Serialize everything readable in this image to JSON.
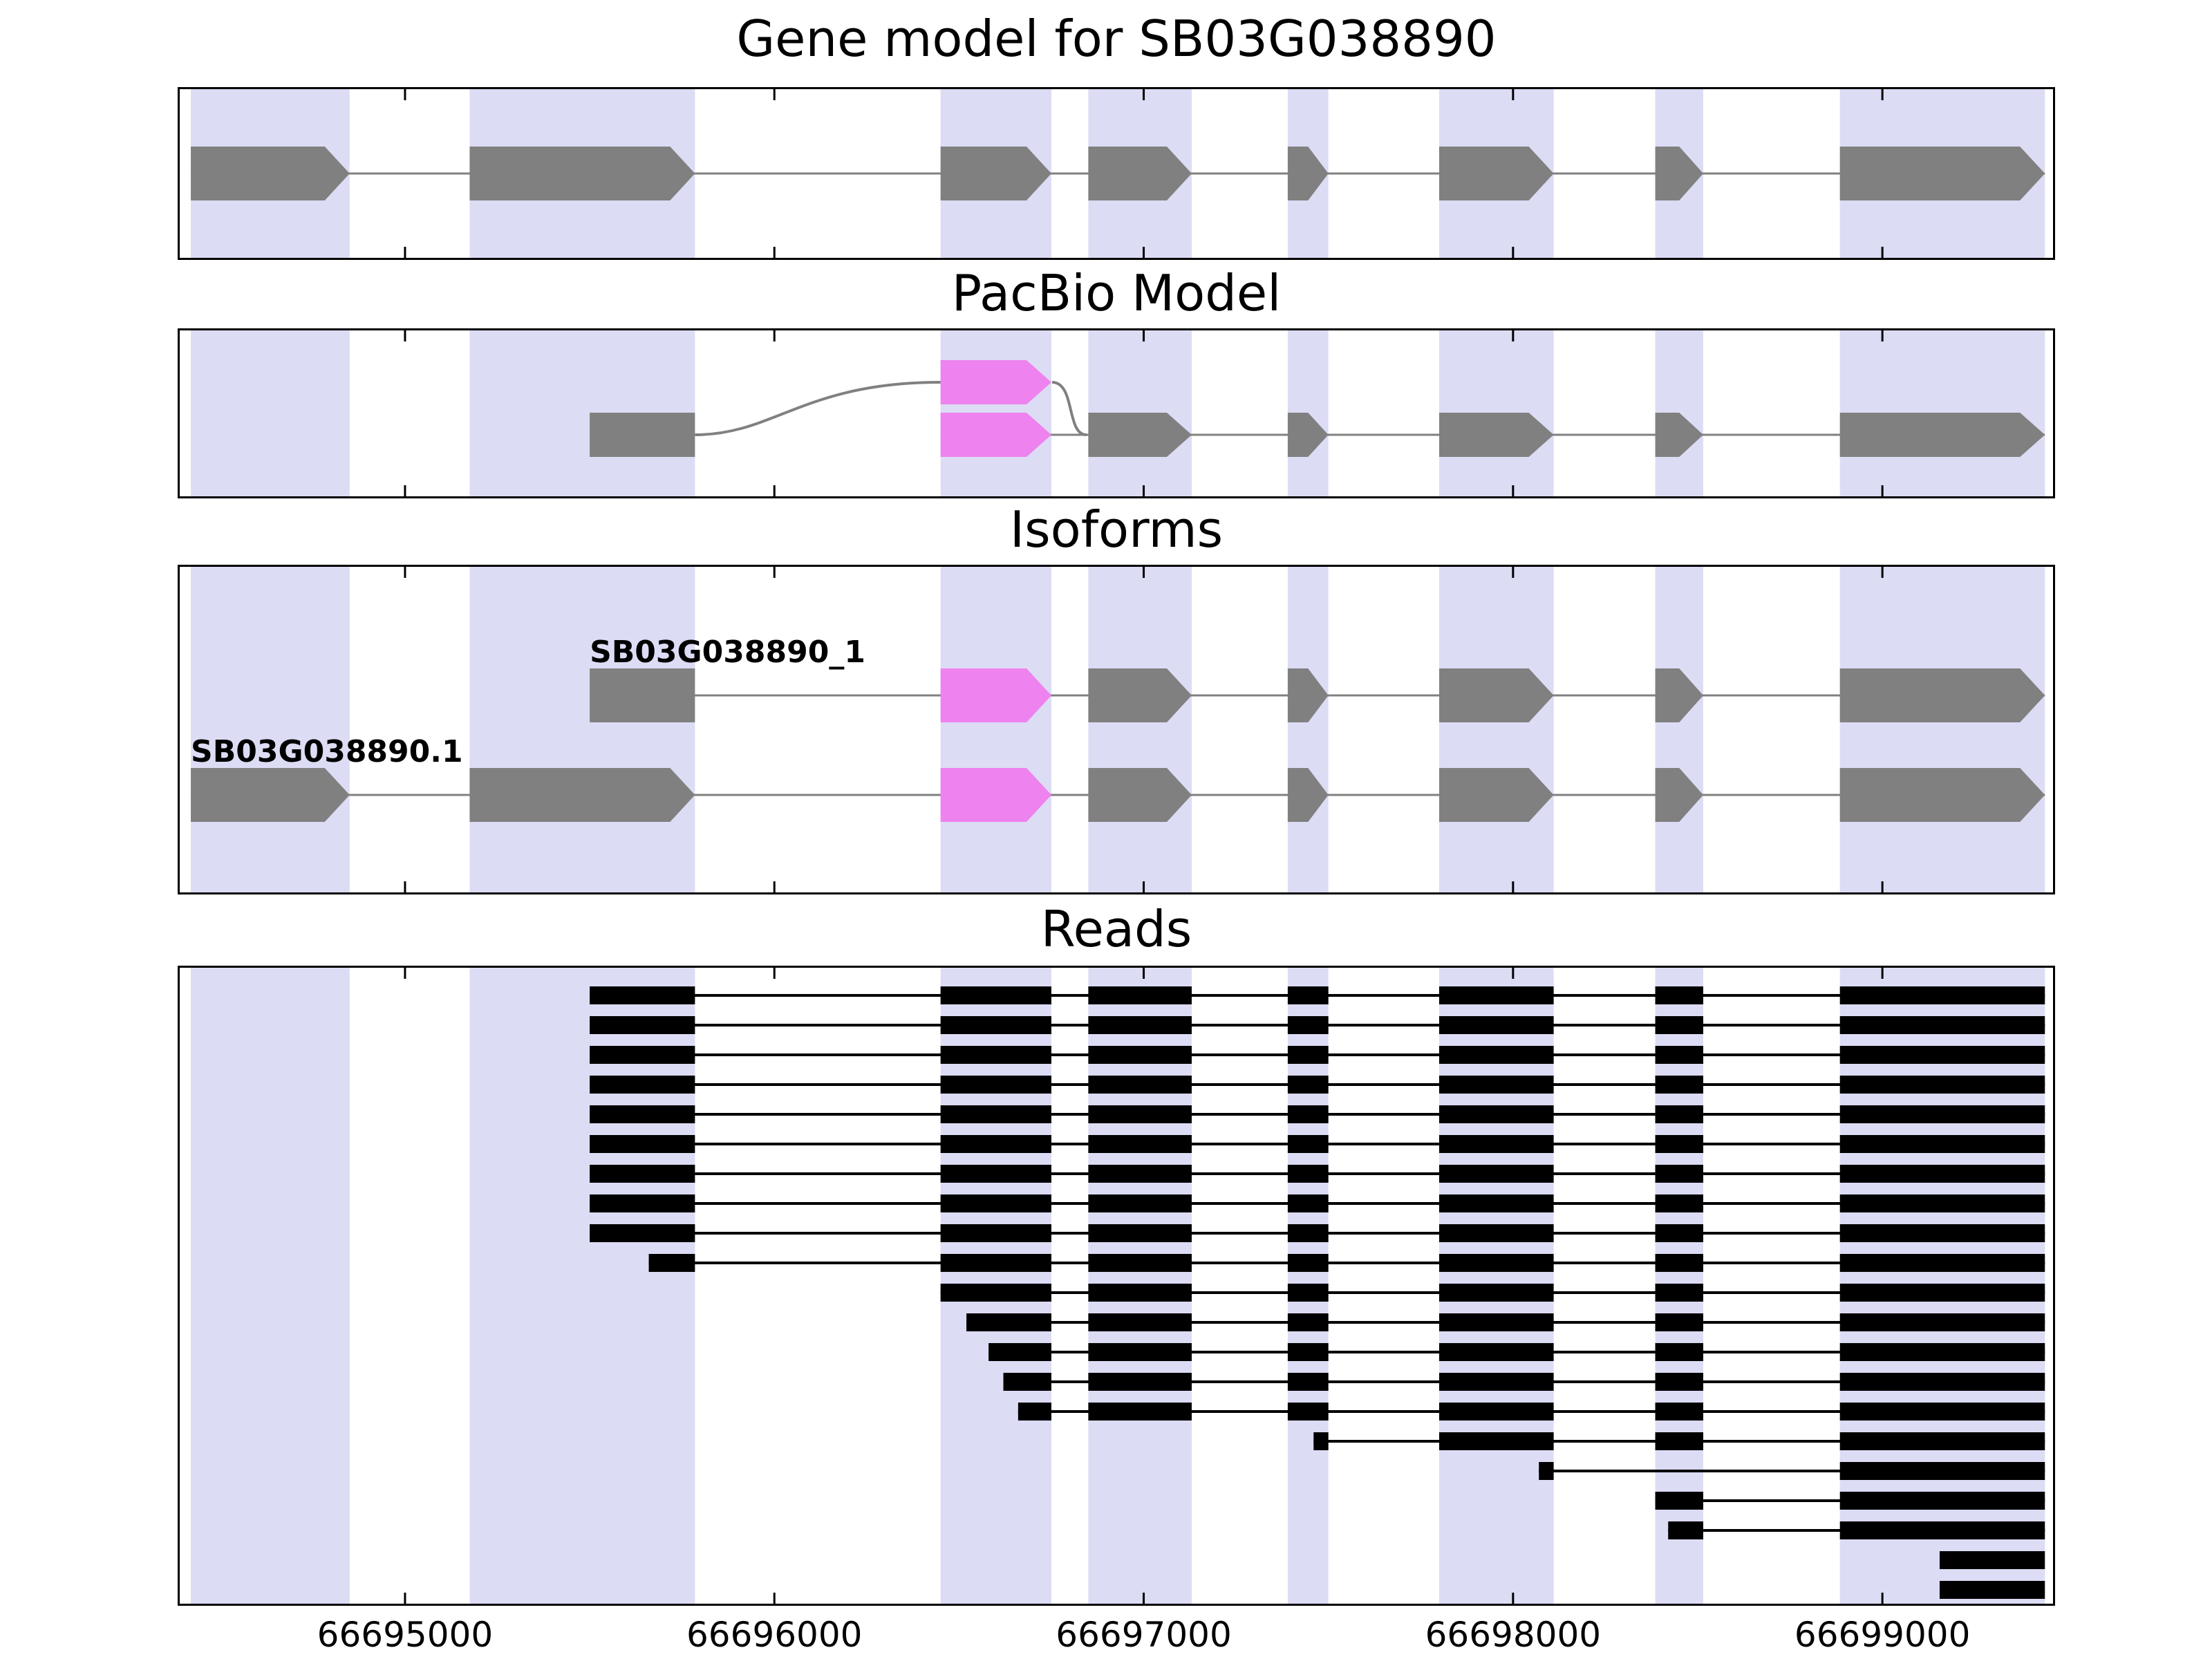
{
  "figure": {
    "background": "#ffffff",
    "colors": {
      "band": "#dcdcf5",
      "exon": "#808080",
      "highlight_exon": "#ee82ee",
      "read": "#000000",
      "connector": "#808080",
      "axis": "#000000"
    }
  },
  "titles": {
    "gene": "Gene model for SB03G038890",
    "pacbio": "PacBio Model",
    "isoforms": "Isoforms",
    "reads": "Reads"
  },
  "chart_data": {
    "type": "gene-model-browser",
    "axis": {
      "xmin": 66694390,
      "xmax": 66699462,
      "ticks": [
        66695000,
        66696000,
        66697000,
        66698000,
        66699000
      ],
      "tick_labels": [
        "66695000",
        "66696000",
        "66697000",
        "66698000",
        "66699000"
      ]
    },
    "highlight_bands": [
      [
        66694420,
        66694850
      ],
      [
        66695175,
        66695785
      ],
      [
        66696450,
        66696750
      ],
      [
        66696850,
        66697130
      ],
      [
        66697390,
        66697500
      ],
      [
        66697800,
        66698110
      ],
      [
        66698385,
        66698515
      ],
      [
        66698885,
        66699440
      ]
    ],
    "gene_model": {
      "strand": "+",
      "exons": [
        [
          66694420,
          66694850
        ],
        [
          66695175,
          66695785
        ],
        [
          66696450,
          66696750
        ],
        [
          66696850,
          66697130
        ],
        [
          66697390,
          66697500
        ],
        [
          66697800,
          66698110
        ],
        [
          66698385,
          66698515
        ],
        [
          66698885,
          66699440
        ]
      ]
    },
    "pacbio_model": {
      "curve_from": 66695785,
      "curve_to": 66696450,
      "baseline": [
        66696450,
        66699440
      ],
      "exons": [
        {
          "start": 66695500,
          "end": 66695785,
          "color": "gray",
          "shape": "rect",
          "level": "base"
        },
        {
          "start": 66696450,
          "end": 66696750,
          "color": "magenta",
          "shape": "arrow",
          "level": "raised"
        },
        {
          "start": 66696450,
          "end": 66696750,
          "color": "magenta",
          "shape": "arrow",
          "level": "base"
        },
        {
          "start": 66696850,
          "end": 66697130,
          "color": "gray",
          "shape": "arrow",
          "level": "base"
        },
        {
          "start": 66697390,
          "end": 66697500,
          "color": "gray",
          "shape": "arrow",
          "level": "base"
        },
        {
          "start": 66697800,
          "end": 66698110,
          "color": "gray",
          "shape": "arrow",
          "level": "base"
        },
        {
          "start": 66698385,
          "end": 66698515,
          "color": "gray",
          "shape": "arrow",
          "level": "base"
        },
        {
          "start": 66698885,
          "end": 66699440,
          "color": "gray",
          "shape": "arrow",
          "level": "base"
        }
      ]
    },
    "isoforms": [
      {
        "label": "SB03G038890_1",
        "exons": [
          {
            "start": 66695500,
            "end": 66695785,
            "color": "gray",
            "shape": "rect"
          },
          {
            "start": 66696450,
            "end": 66696750,
            "color": "magenta",
            "shape": "arrow"
          },
          {
            "start": 66696850,
            "end": 66697130,
            "color": "gray",
            "shape": "arrow"
          },
          {
            "start": 66697390,
            "end": 66697500,
            "color": "gray",
            "shape": "arrow"
          },
          {
            "start": 66697800,
            "end": 66698110,
            "color": "gray",
            "shape": "arrow"
          },
          {
            "start": 66698385,
            "end": 66698515,
            "color": "gray",
            "shape": "arrow"
          },
          {
            "start": 66698885,
            "end": 66699440,
            "color": "gray",
            "shape": "arrow"
          }
        ]
      },
      {
        "label": "SB03G038890.1",
        "exons": [
          {
            "start": 66694420,
            "end": 66694850,
            "color": "gray",
            "shape": "arrow"
          },
          {
            "start": 66695175,
            "end": 66695785,
            "color": "gray",
            "shape": "arrow"
          },
          {
            "start": 66696450,
            "end": 66696750,
            "color": "magenta",
            "shape": "arrow"
          },
          {
            "start": 66696850,
            "end": 66697130,
            "color": "gray",
            "shape": "arrow"
          },
          {
            "start": 66697390,
            "end": 66697500,
            "color": "gray",
            "shape": "arrow"
          },
          {
            "start": 66697800,
            "end": 66698110,
            "color": "gray",
            "shape": "arrow"
          },
          {
            "start": 66698385,
            "end": 66698515,
            "color": "gray",
            "shape": "arrow"
          },
          {
            "start": 66698885,
            "end": 66699440,
            "color": "gray",
            "shape": "arrow"
          }
        ]
      }
    ],
    "reads": [
      [
        [
          66695500,
          66695785
        ],
        [
          66696450,
          66696750
        ],
        [
          66696850,
          66697130
        ],
        [
          66697390,
          66697500
        ],
        [
          66697800,
          66698110
        ],
        [
          66698385,
          66698515
        ],
        [
          66698885,
          66699440
        ]
      ],
      [
        [
          66695500,
          66695785
        ],
        [
          66696450,
          66696750
        ],
        [
          66696850,
          66697130
        ],
        [
          66697390,
          66697500
        ],
        [
          66697800,
          66698110
        ],
        [
          66698385,
          66698515
        ],
        [
          66698885,
          66699440
        ]
      ],
      [
        [
          66695500,
          66695785
        ],
        [
          66696450,
          66696750
        ],
        [
          66696850,
          66697130
        ],
        [
          66697390,
          66697500
        ],
        [
          66697800,
          66698110
        ],
        [
          66698385,
          66698515
        ],
        [
          66698885,
          66699440
        ]
      ],
      [
        [
          66695500,
          66695785
        ],
        [
          66696450,
          66696750
        ],
        [
          66696850,
          66697130
        ],
        [
          66697390,
          66697500
        ],
        [
          66697800,
          66698110
        ],
        [
          66698385,
          66698515
        ],
        [
          66698885,
          66699440
        ]
      ],
      [
        [
          66695500,
          66695785
        ],
        [
          66696450,
          66696750
        ],
        [
          66696850,
          66697130
        ],
        [
          66697390,
          66697500
        ],
        [
          66697800,
          66698110
        ],
        [
          66698385,
          66698515
        ],
        [
          66698885,
          66699440
        ]
      ],
      [
        [
          66695500,
          66695785
        ],
        [
          66696450,
          66696750
        ],
        [
          66696850,
          66697130
        ],
        [
          66697390,
          66697500
        ],
        [
          66697800,
          66698110
        ],
        [
          66698385,
          66698515
        ],
        [
          66698885,
          66699440
        ]
      ],
      [
        [
          66695500,
          66695785
        ],
        [
          66696450,
          66696750
        ],
        [
          66696850,
          66697130
        ],
        [
          66697390,
          66697500
        ],
        [
          66697800,
          66698110
        ],
        [
          66698385,
          66698515
        ],
        [
          66698885,
          66699440
        ]
      ],
      [
        [
          66695500,
          66695785
        ],
        [
          66696450,
          66696750
        ],
        [
          66696850,
          66697130
        ],
        [
          66697390,
          66697500
        ],
        [
          66697800,
          66698110
        ],
        [
          66698385,
          66698515
        ],
        [
          66698885,
          66699440
        ]
      ],
      [
        [
          66695500,
          66695785
        ],
        [
          66696450,
          66696750
        ],
        [
          66696850,
          66697130
        ],
        [
          66697390,
          66697500
        ],
        [
          66697800,
          66698110
        ],
        [
          66698385,
          66698515
        ],
        [
          66698885,
          66699440
        ]
      ],
      [
        [
          66695660,
          66695785
        ],
        [
          66696450,
          66696750
        ],
        [
          66696850,
          66697130
        ],
        [
          66697390,
          66697500
        ],
        [
          66697800,
          66698110
        ],
        [
          66698385,
          66698515
        ],
        [
          66698885,
          66699440
        ]
      ],
      [
        [
          66696450,
          66696750
        ],
        [
          66696850,
          66697130
        ],
        [
          66697390,
          66697500
        ],
        [
          66697800,
          66698110
        ],
        [
          66698385,
          66698515
        ],
        [
          66698885,
          66699440
        ]
      ],
      [
        [
          66696520,
          66696750
        ],
        [
          66696850,
          66697130
        ],
        [
          66697390,
          66697500
        ],
        [
          66697800,
          66698110
        ],
        [
          66698385,
          66698515
        ],
        [
          66698885,
          66699440
        ]
      ],
      [
        [
          66696580,
          66696750
        ],
        [
          66696850,
          66697130
        ],
        [
          66697390,
          66697500
        ],
        [
          66697800,
          66698110
        ],
        [
          66698385,
          66698515
        ],
        [
          66698885,
          66699440
        ]
      ],
      [
        [
          66696620,
          66696750
        ],
        [
          66696850,
          66697130
        ],
        [
          66697390,
          66697500
        ],
        [
          66697800,
          66698110
        ],
        [
          66698385,
          66698515
        ],
        [
          66698885,
          66699440
        ]
      ],
      [
        [
          66696660,
          66696750
        ],
        [
          66696850,
          66697130
        ],
        [
          66697390,
          66697500
        ],
        [
          66697800,
          66698110
        ],
        [
          66698385,
          66698515
        ],
        [
          66698885,
          66699440
        ]
      ],
      [
        [
          66697460,
          66697500
        ],
        [
          66697800,
          66698110
        ],
        [
          66698385,
          66698515
        ],
        [
          66698885,
          66699440
        ]
      ],
      [
        [
          66698070,
          66698110
        ],
        [
          66698885,
          66699440
        ]
      ],
      [
        [
          66698385,
          66698515
        ],
        [
          66698885,
          66699440
        ]
      ],
      [
        [
          66698420,
          66698515
        ],
        [
          66698885,
          66699440
        ]
      ],
      [
        [
          66699155,
          66699440
        ]
      ],
      [
        [
          66699155,
          66699440
        ]
      ]
    ]
  }
}
